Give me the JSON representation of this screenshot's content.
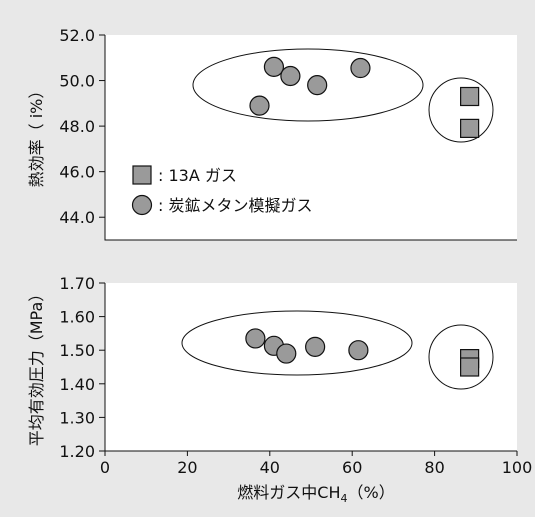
{
  "colors": {
    "background": "#e8e8e8",
    "plot_bg": "#ffffff",
    "marker_fill": "#9a9a9a",
    "ink": "#111111"
  },
  "chart_data": [
    {
      "type": "scatter",
      "ylabel": "熱効率（ i%）",
      "ylim": [
        43.0,
        52.0
      ],
      "yticks": [
        "44.0",
        "46.0",
        "48.0",
        "50.0",
        "52.0"
      ],
      "xlim": [
        0,
        100
      ],
      "grid": false,
      "legend": {
        "position": "bottom-left",
        "entries": [
          {
            "marker": "square",
            "label": ": 13A ガス"
          },
          {
            "marker": "circle",
            "label": ": 炭鉱メタン模擬ガス"
          }
        ]
      },
      "series": [
        {
          "name": "13A ガス",
          "marker": "square",
          "points": [
            {
              "x": 88.5,
              "y": 49.3
            },
            {
              "x": 88.5,
              "y": 47.9
            }
          ]
        },
        {
          "name": "炭鉱メタン模擬ガス",
          "marker": "circle",
          "points": [
            {
              "x": 37.5,
              "y": 48.9
            },
            {
              "x": 41.0,
              "y": 50.6
            },
            {
              "x": 45.0,
              "y": 50.2
            },
            {
              "x": 51.5,
              "y": 49.8
            },
            {
              "x": 62.0,
              "y": 50.55
            }
          ]
        }
      ]
    },
    {
      "type": "scatter",
      "ylabel": "平均有効圧力（MPa）",
      "xlabel": "燃料ガス中CH",
      "xlabel_sub": "4",
      "xlabel_tail": "（%）",
      "ylim": [
        1.2,
        1.7
      ],
      "yticks": [
        "1.20",
        "1.30",
        "1.40",
        "1.50",
        "1.60",
        "1.70"
      ],
      "xlim": [
        0,
        100
      ],
      "xticks": [
        "0",
        "20",
        "40",
        "60",
        "80",
        "100"
      ],
      "grid": false,
      "series": [
        {
          "name": "13A ガス",
          "marker": "square",
          "points": [
            {
              "x": 88.5,
              "y": 1.475
            },
            {
              "x": 88.5,
              "y": 1.45
            }
          ]
        },
        {
          "name": "炭鉱メタン模擬ガス",
          "marker": "circle",
          "points": [
            {
              "x": 36.5,
              "y": 1.535
            },
            {
              "x": 41.0,
              "y": 1.513
            },
            {
              "x": 44.0,
              "y": 1.49
            },
            {
              "x": 51.0,
              "y": 1.51
            },
            {
              "x": 61.5,
              "y": 1.5
            }
          ]
        }
      ]
    }
  ]
}
